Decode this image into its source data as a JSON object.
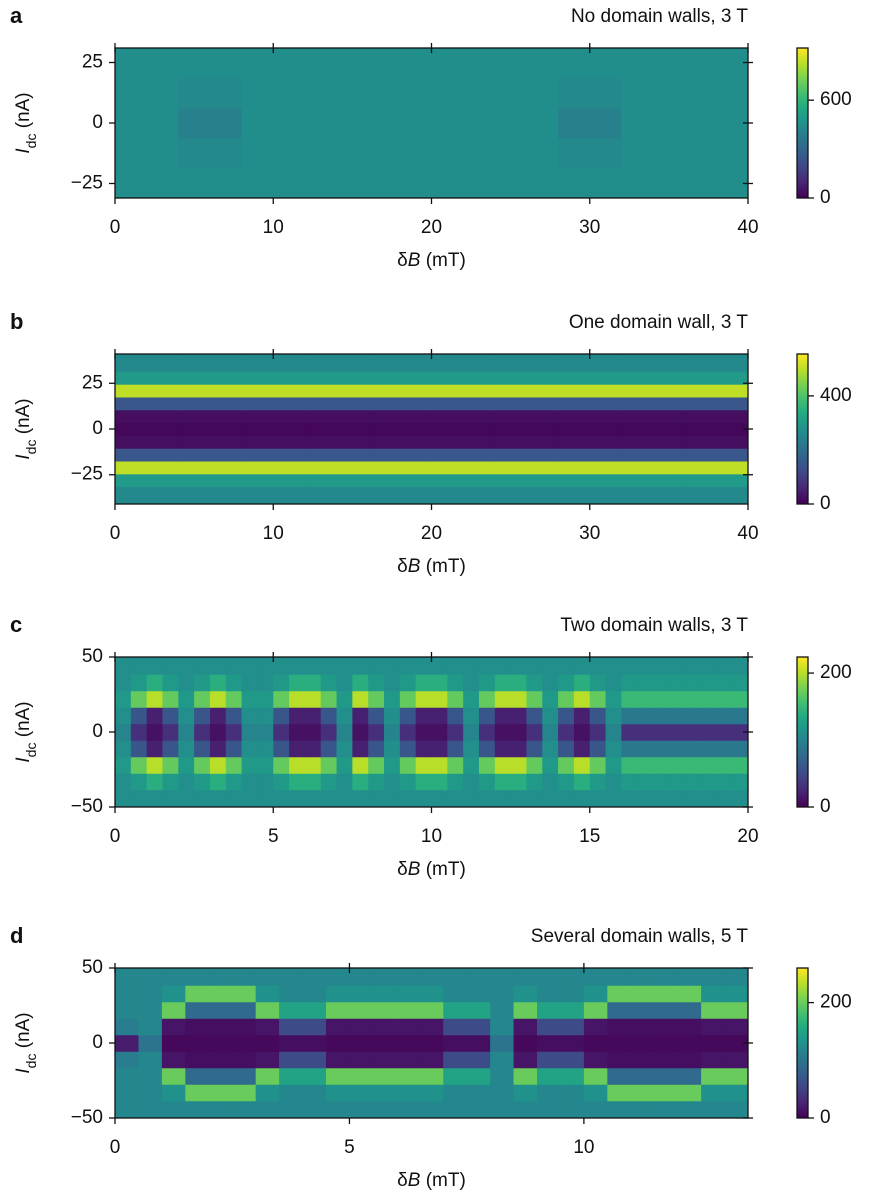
{
  "chart_data": [
    {
      "type": "heatmap",
      "label": "a",
      "title": "No domain walls, 3 T",
      "xlabel": [
        "δ",
        "B",
        " (mT)"
      ],
      "ylabel": [
        "I",
        "dc",
        " (nA)"
      ],
      "colormap": "viridis",
      "clim": [
        0,
        920
      ],
      "cbar_ticks": [
        0,
        600
      ],
      "xlim": [
        0,
        40
      ],
      "xticks": [
        0,
        10,
        20,
        30,
        40
      ],
      "ylim": [
        -31,
        31
      ],
      "yticks": [
        {
          "value": -25,
          "label": "−25"
        },
        0,
        25
      ],
      "x": [
        2,
        6,
        10,
        14,
        18,
        22,
        26,
        30,
        34,
        38
      ],
      "y": [
        -25,
        -12.5,
        0,
        12.5,
        25
      ],
      "z": [
        [
          450,
          450,
          450,
          450,
          450,
          450,
          450,
          450,
          450,
          450
        ],
        [
          450,
          430,
          450,
          450,
          450,
          450,
          450,
          430,
          450,
          450
        ],
        [
          450,
          400,
          450,
          450,
          450,
          450,
          450,
          400,
          450,
          450
        ],
        [
          450,
          430,
          450,
          450,
          450,
          450,
          450,
          430,
          450,
          450
        ],
        [
          450,
          450,
          450,
          450,
          450,
          450,
          450,
          450,
          450,
          450
        ]
      ]
    },
    {
      "type": "heatmap",
      "label": "b",
      "title": "One domain wall, 3 T",
      "xlabel": [
        "δ",
        "B",
        " (mT)"
      ],
      "ylabel": [
        "I",
        "dc",
        " (nA)"
      ],
      "colormap": "viridis",
      "clim": [
        0,
        555
      ],
      "cbar_ticks": [
        0,
        400
      ],
      "xlim": [
        0,
        40
      ],
      "xticks": [
        0,
        10,
        20,
        30,
        40
      ],
      "ylim": [
        -41,
        41
      ],
      "yticks": [
        {
          "value": -25,
          "label": "−25"
        },
        0,
        25
      ],
      "x": [
        2,
        6,
        10,
        14,
        18,
        22,
        26,
        30,
        34,
        38
      ],
      "y": [
        -35,
        -28,
        -21,
        -14,
        -7,
        0,
        7,
        14,
        21,
        28,
        35
      ],
      "z": [
        [
          260,
          260,
          260,
          260,
          260,
          260,
          260,
          260,
          260,
          260
        ],
        [
          300,
          300,
          300,
          300,
          300,
          300,
          300,
          300,
          300,
          300
        ],
        [
          500,
          500,
          500,
          500,
          500,
          500,
          500,
          500,
          500,
          500
        ],
        [
          150,
          150,
          150,
          150,
          150,
          150,
          150,
          150,
          150,
          150
        ],
        [
          20,
          20,
          20,
          20,
          20,
          20,
          20,
          20,
          20,
          20
        ],
        [
          10,
          10,
          10,
          10,
          10,
          10,
          10,
          10,
          10,
          10
        ],
        [
          20,
          20,
          20,
          20,
          20,
          20,
          20,
          20,
          20,
          20
        ],
        [
          150,
          150,
          150,
          150,
          150,
          150,
          150,
          150,
          150,
          150
        ],
        [
          500,
          500,
          500,
          500,
          500,
          500,
          500,
          500,
          500,
          500
        ],
        [
          300,
          300,
          300,
          300,
          300,
          300,
          300,
          300,
          300,
          300
        ],
        [
          260,
          260,
          260,
          260,
          260,
          260,
          260,
          260,
          260,
          260
        ]
      ]
    },
    {
      "type": "heatmap",
      "label": "c",
      "title": "Two domain walls, 3 T",
      "xlabel": [
        "δ",
        "B",
        " (mT)"
      ],
      "ylabel": [
        "I",
        "dc",
        " (nA)"
      ],
      "colormap": "viridis",
      "clim": [
        0,
        224
      ],
      "cbar_ticks": [
        0,
        200
      ],
      "xlim": [
        0,
        20
      ],
      "xticks": [
        0,
        5,
        10,
        15,
        20
      ],
      "ylim": [
        -50,
        50
      ],
      "yticks": [
        {
          "value": -50,
          "label": "−50"
        },
        0,
        50
      ],
      "x": [
        0.25,
        0.75,
        1.25,
        1.75,
        2.25,
        2.75,
        3.25,
        3.75,
        4.25,
        4.75,
        5.25,
        5.75,
        6.25,
        6.75,
        7.25,
        7.75,
        8.25,
        8.75,
        9.25,
        9.75,
        10.25,
        10.75,
        11.25,
        11.75,
        12.25,
        12.75,
        13.25,
        13.75,
        14.25,
        14.75,
        15.25,
        15.75,
        16.25,
        16.75,
        17.25,
        17.75,
        18.25,
        18.75,
        19.25,
        19.75
      ],
      "y": [
        -44,
        -33,
        -22,
        -11,
        0,
        11,
        22,
        33,
        44
      ],
      "z": [
        [
          110,
          110,
          110,
          110,
          110,
          110,
          110,
          110,
          110,
          110,
          110,
          110,
          110,
          110,
          110,
          110,
          110,
          110,
          110,
          110,
          110,
          110,
          110,
          110,
          110,
          110,
          110,
          110,
          110,
          110,
          110,
          110,
          110,
          110,
          110,
          110,
          110,
          110,
          110,
          110
        ],
        [
          110,
          120,
          140,
          120,
          110,
          120,
          140,
          120,
          110,
          110,
          120,
          140,
          140,
          120,
          110,
          140,
          120,
          110,
          120,
          140,
          140,
          120,
          110,
          120,
          140,
          140,
          120,
          110,
          120,
          140,
          120,
          110,
          120,
          120,
          120,
          120,
          120,
          120,
          120,
          120
        ],
        [
          120,
          170,
          200,
          170,
          120,
          170,
          200,
          170,
          120,
          120,
          170,
          200,
          200,
          170,
          120,
          200,
          170,
          120,
          170,
          200,
          200,
          170,
          120,
          170,
          200,
          200,
          170,
          120,
          170,
          200,
          170,
          120,
          150,
          150,
          150,
          150,
          150,
          150,
          150,
          150
        ],
        [
          110,
          60,
          20,
          60,
          110,
          60,
          20,
          60,
          110,
          110,
          60,
          20,
          20,
          60,
          110,
          20,
          60,
          110,
          60,
          20,
          20,
          60,
          110,
          60,
          20,
          20,
          60,
          110,
          60,
          20,
          60,
          110,
          90,
          90,
          90,
          90,
          90,
          90,
          90,
          90
        ],
        [
          100,
          30,
          10,
          30,
          100,
          30,
          10,
          30,
          100,
          100,
          30,
          10,
          10,
          30,
          100,
          10,
          30,
          100,
          30,
          10,
          10,
          30,
          100,
          30,
          10,
          10,
          30,
          100,
          30,
          10,
          30,
          100,
          30,
          30,
          30,
          30,
          30,
          30,
          30,
          30
        ],
        [
          110,
          60,
          20,
          60,
          110,
          60,
          20,
          60,
          110,
          110,
          60,
          20,
          20,
          60,
          110,
          20,
          60,
          110,
          60,
          20,
          20,
          60,
          110,
          60,
          20,
          20,
          60,
          110,
          60,
          20,
          60,
          110,
          90,
          90,
          90,
          90,
          90,
          90,
          90,
          90
        ],
        [
          120,
          170,
          200,
          170,
          120,
          170,
          200,
          170,
          120,
          120,
          170,
          200,
          200,
          170,
          120,
          200,
          170,
          120,
          170,
          200,
          200,
          170,
          120,
          170,
          200,
          200,
          170,
          120,
          170,
          200,
          170,
          120,
          150,
          150,
          150,
          150,
          150,
          150,
          150,
          150
        ],
        [
          110,
          120,
          140,
          120,
          110,
          120,
          140,
          120,
          110,
          110,
          120,
          140,
          140,
          120,
          110,
          140,
          120,
          110,
          120,
          140,
          140,
          120,
          110,
          120,
          140,
          140,
          120,
          110,
          120,
          140,
          120,
          110,
          120,
          120,
          120,
          120,
          120,
          120,
          120,
          120
        ],
        [
          110,
          110,
          110,
          110,
          110,
          110,
          110,
          110,
          110,
          110,
          110,
          110,
          110,
          110,
          110,
          110,
          110,
          110,
          110,
          110,
          110,
          110,
          110,
          110,
          110,
          110,
          110,
          110,
          110,
          110,
          110,
          110,
          110,
          110,
          110,
          110,
          110,
          110,
          110,
          110
        ]
      ]
    },
    {
      "type": "heatmap",
      "label": "d",
      "title": "Several domain walls, 5 T",
      "xlabel": [
        "δ",
        "B",
        " (mT)"
      ],
      "ylabel": [
        "I",
        "dc",
        " (nA)"
      ],
      "colormap": "viridis",
      "clim": [
        0,
        260
      ],
      "cbar_ticks": [
        0,
        200
      ],
      "xlim": [
        0,
        13.5
      ],
      "xticks": [
        0,
        5,
        10
      ],
      "ylim": [
        -50,
        50
      ],
      "yticks": [
        {
          "value": -50,
          "label": "−50"
        },
        0,
        50
      ],
      "x": [
        0.25,
        0.75,
        1.25,
        1.75,
        2.25,
        2.75,
        3.25,
        3.75,
        4.25,
        4.75,
        5.25,
        5.75,
        6.25,
        6.75,
        7.25,
        7.75,
        8.25,
        8.75,
        9.25,
        9.75,
        10.25,
        10.75,
        11.25,
        11.75,
        12.25,
        12.75,
        13.25
      ],
      "y": [
        -44,
        -33,
        -22,
        -11,
        0,
        11,
        22,
        33,
        44
      ],
      "z": [
        [
          120,
          120,
          120,
          120,
          120,
          120,
          120,
          120,
          120,
          120,
          120,
          120,
          120,
          120,
          120,
          120,
          120,
          120,
          120,
          120,
          120,
          120,
          120,
          120,
          120,
          120,
          120
        ],
        [
          120,
          120,
          130,
          200,
          200,
          200,
          130,
          120,
          120,
          130,
          130,
          130,
          130,
          130,
          120,
          120,
          120,
          130,
          120,
          120,
          130,
          200,
          200,
          200,
          200,
          130,
          130
        ],
        [
          120,
          120,
          200,
          90,
          90,
          90,
          200,
          150,
          150,
          200,
          200,
          200,
          200,
          200,
          150,
          150,
          120,
          200,
          150,
          150,
          200,
          90,
          90,
          90,
          90,
          200,
          200
        ],
        [
          110,
          120,
          15,
          10,
          10,
          10,
          15,
          60,
          60,
          15,
          15,
          15,
          15,
          15,
          60,
          60,
          120,
          15,
          60,
          60,
          15,
          10,
          10,
          10,
          10,
          15,
          15
        ],
        [
          20,
          100,
          5,
          5,
          5,
          5,
          5,
          10,
          10,
          5,
          5,
          5,
          5,
          5,
          10,
          10,
          100,
          5,
          10,
          10,
          5,
          5,
          5,
          5,
          5,
          5,
          5
        ],
        [
          110,
          120,
          15,
          10,
          10,
          10,
          15,
          60,
          60,
          15,
          15,
          15,
          15,
          15,
          60,
          60,
          120,
          15,
          60,
          60,
          15,
          10,
          10,
          10,
          10,
          15,
          15
        ],
        [
          120,
          120,
          200,
          90,
          90,
          90,
          200,
          150,
          150,
          200,
          200,
          200,
          200,
          200,
          150,
          150,
          120,
          200,
          150,
          150,
          200,
          90,
          90,
          90,
          90,
          200,
          200
        ],
        [
          120,
          120,
          130,
          200,
          200,
          200,
          130,
          120,
          120,
          130,
          130,
          130,
          130,
          130,
          120,
          120,
          120,
          130,
          120,
          120,
          130,
          200,
          200,
          200,
          200,
          130,
          130
        ],
        [
          120,
          120,
          120,
          120,
          120,
          120,
          120,
          120,
          120,
          120,
          120,
          120,
          120,
          120,
          120,
          120,
          120,
          120,
          120,
          120,
          120,
          120,
          120,
          120,
          120,
          120,
          120
        ]
      ]
    }
  ]
}
